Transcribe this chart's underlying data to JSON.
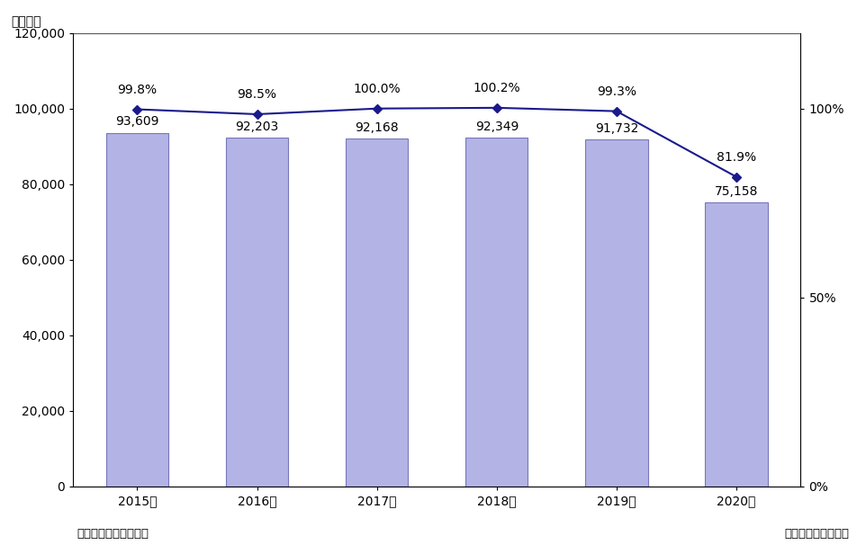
{
  "years": [
    "2015年",
    "2016年",
    "2017年",
    "2018年",
    "2019年",
    "2020年"
  ],
  "bar_values": [
    93609,
    92203,
    92168,
    92349,
    91732,
    75158
  ],
  "bar_labels": [
    "93,609",
    "92,203",
    "92,168",
    "92,349",
    "91,732",
    "75,158"
  ],
  "line_values": [
    99.8,
    98.5,
    100.0,
    100.2,
    99.3,
    81.9
  ],
  "line_labels": [
    "99.8%",
    "98.5%",
    "100.0%",
    "100.2%",
    "99.3%",
    "81.9%"
  ],
  "bar_color": "#b3b3e6",
  "bar_edge_color": "#7777bb",
  "line_color": "#1a1a8c",
  "left_ylabel": "（億円）",
  "left_ylim": [
    0,
    120000
  ],
  "left_yticks": [
    0,
    20000,
    40000,
    60000,
    80000,
    100000,
    120000
  ],
  "right_ylim": [
    0,
    120
  ],
  "right_yticks": [
    0,
    50,
    100
  ],
  "right_yticklabels": [
    "0%",
    "50%",
    "100%"
  ],
  "note_left": "注１．小売金額ベース",
  "note_right": "矢野経済研究所調べ",
  "background_color": "#ffffff",
  "label_fontsize": 10,
  "tick_fontsize": 10,
  "note_fontsize": 9.5
}
